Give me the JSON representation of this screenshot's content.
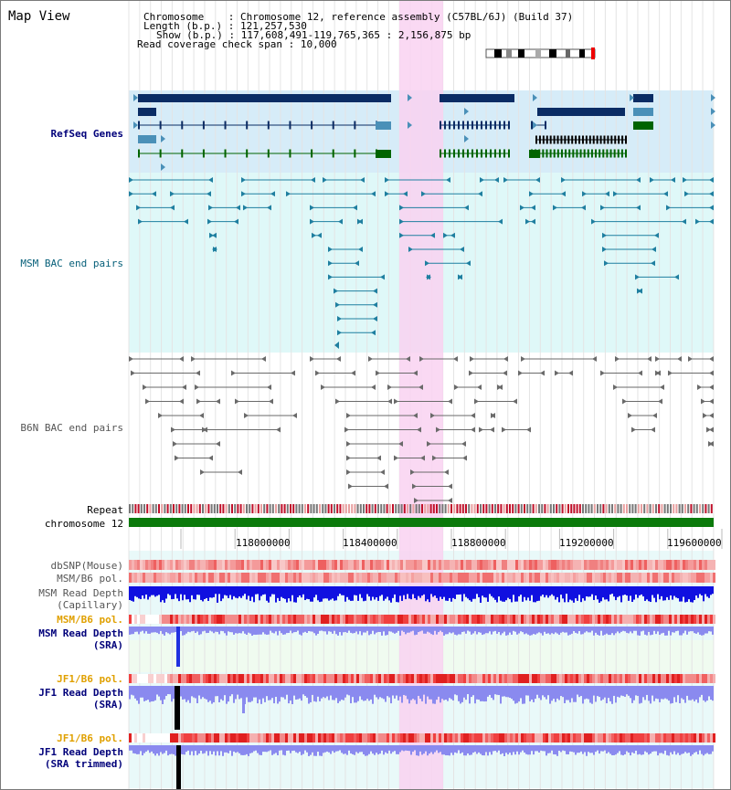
{
  "title": "Map View",
  "info": {
    "chrom_label": "Chromosome",
    "chrom_value": "Chromosome 12, reference assembly (C57BL/6J) (Build 37)",
    "length_label": "Length (b.p.)",
    "length_value": "121,257,530",
    "show_label": "Show (b.p.)",
    "show_value": "117,608,491-119,765,365 : 2,156,875 bp",
    "coverage_label": "Read coverage check span",
    "coverage_value": "10,000"
  },
  "tracks": {
    "refseq": "RefSeq Genes",
    "msm_bac": "MSM BAC end pairs",
    "b6n_bac": "B6N BAC end pairs",
    "repeat": "Repeat",
    "chromosome": "chromosome 12",
    "dbsnp": "dbSNP(Mouse)",
    "msm_b6_pol": "MSM/B6 pol.",
    "msm_depth_cap_1": "MSM Read Depth",
    "msm_depth_cap_2": "(Capillary)",
    "msm_b6_pol2": "MSM/B6 pol.",
    "msm_depth_sra_1": "MSM Read Depth",
    "msm_depth_sra_2": "(SRA)",
    "jf1_b6_pol": "JF1/B6 pol.",
    "jf1_depth_sra_1": "JF1 Read Depth",
    "jf1_depth_sra_2": "(SRA)",
    "jf1_b6_pol2": "JF1/B6 pol.",
    "jf1_depth_trim_1": "JF1 Read Depth",
    "jf1_depth_trim_2": "(SRA trimmed)"
  },
  "axis": {
    "ticks": [
      "118000000",
      "118400000",
      "118800000",
      "119200000",
      "119600000"
    ]
  },
  "colors": {
    "highlight": "#f9d2f1",
    "refseq_bg": "#d6ecf8",
    "msm_bg": "#dff8f8",
    "gene_dark": "#0a2c64",
    "gene_green": "#006400",
    "chrom_bar": "#0b7a0b",
    "depth_blue": "#1010e0",
    "depth_light": "#8a8aef"
  }
}
